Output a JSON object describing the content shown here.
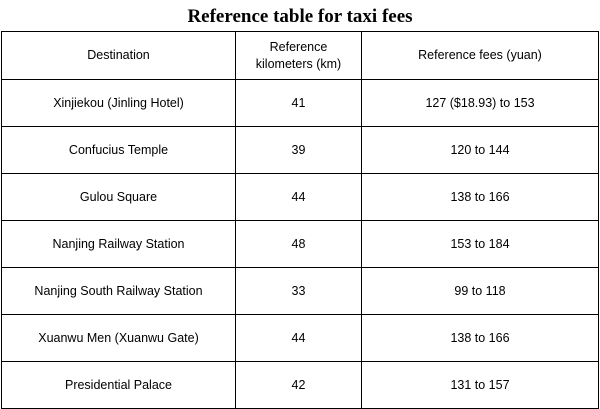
{
  "title": "Reference table for taxi fees",
  "table": {
    "headers": {
      "destination": "Destination",
      "km_line1": "Reference",
      "km_line2": "kilometers (km)",
      "fees": "Reference fees (yuan)"
    },
    "rows": [
      {
        "destination": "Xinjiekou (Jinling Hotel)",
        "km": "41",
        "fees": "127 ($18.93) to 153"
      },
      {
        "destination": "Confucius Temple",
        "km": "39",
        "fees": "120 to 144"
      },
      {
        "destination": "Gulou Square",
        "km": "44",
        "fees": "138 to 166"
      },
      {
        "destination": "Nanjing Railway Station",
        "km": "48",
        "fees": "153 to 184"
      },
      {
        "destination": "Nanjing South Railway Station",
        "km": "33",
        "fees": "99 to 118"
      },
      {
        "destination": "Xuanwu Men (Xuanwu Gate)",
        "km": "44",
        "fees": "138 to 166"
      },
      {
        "destination": "Presidential Palace",
        "km": "42",
        "fees": "131 to 157"
      }
    ]
  }
}
